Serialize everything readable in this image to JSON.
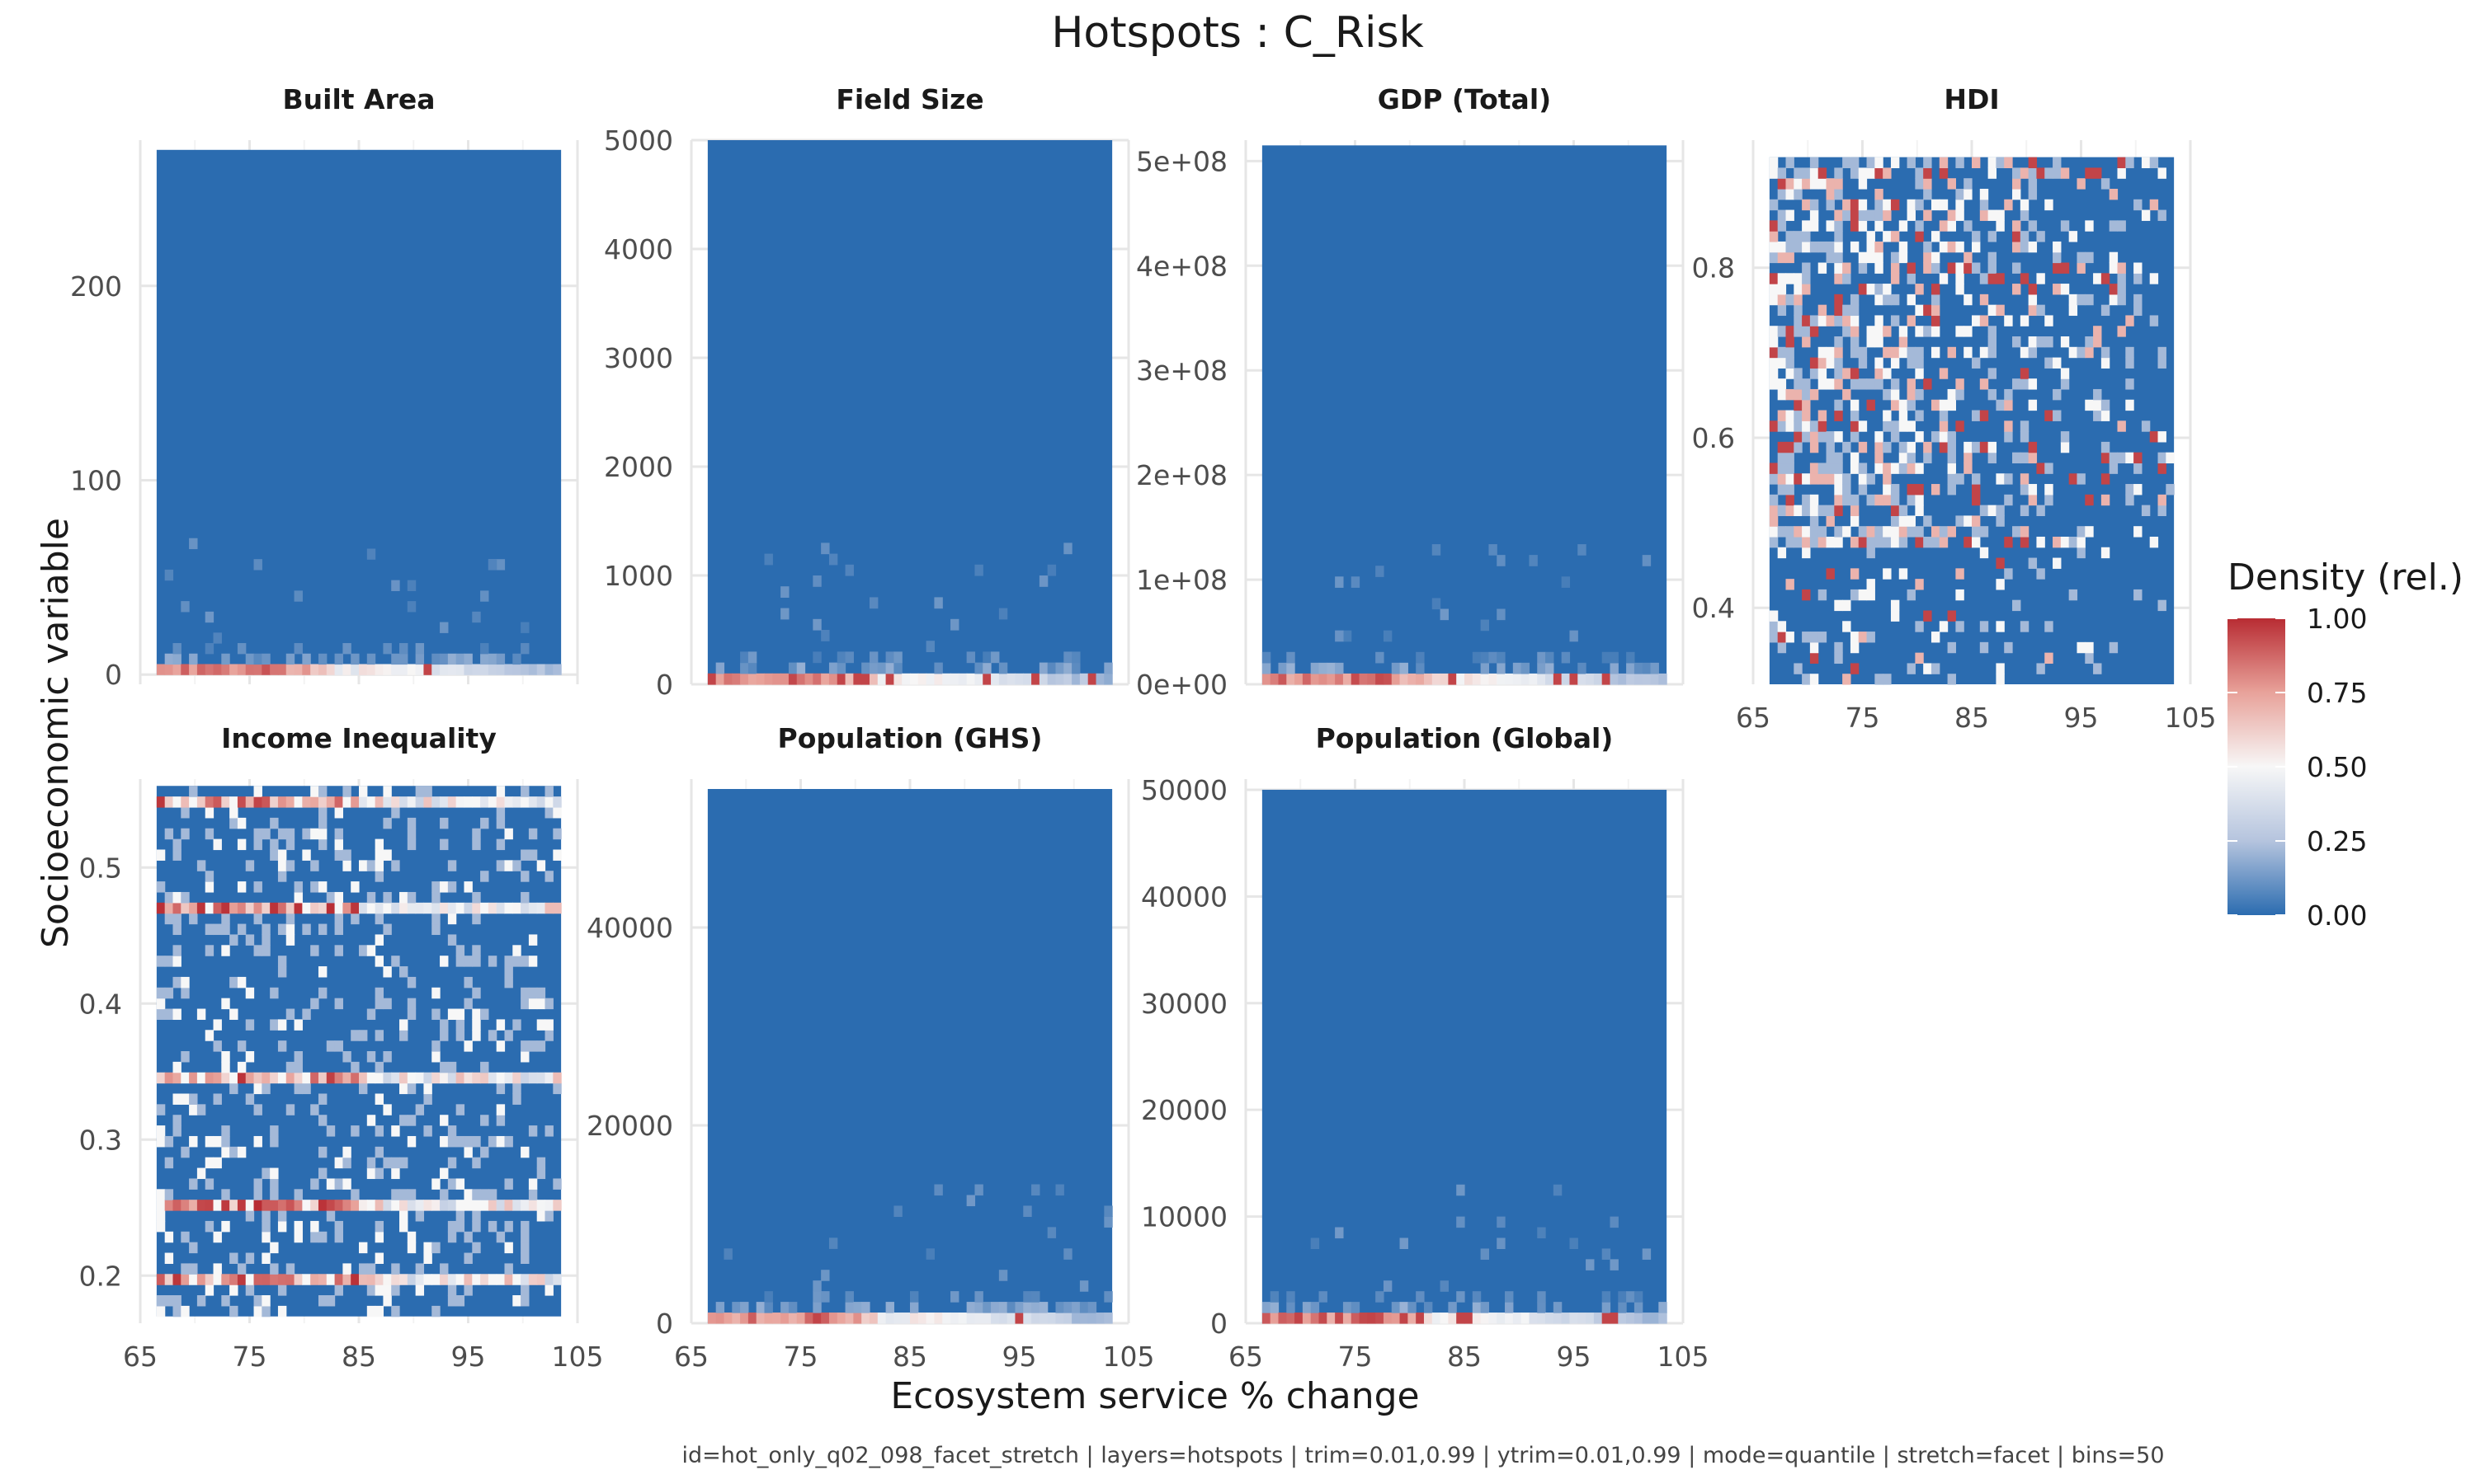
{
  "title": "Hotspots : C_Risk",
  "x_axis_title": "Ecosystem service % change",
  "y_axis_title": "Socioeconomic variable",
  "caption": "id=hot_only_q02_098_facet_stretch | layers=hotspots | trim=0.01,0.99 | ytrim=0.01,0.99 | mode=quantile | stretch=facet | bins=50",
  "legend": {
    "title": "Density (rel.)",
    "ticks": [
      "1.00",
      "0.75",
      "0.50",
      "0.25",
      "0.00"
    ],
    "colors": [
      "#2b6cb0",
      "#b5c4de",
      "#f7f7f7",
      "#e8a29a",
      "#b82c33"
    ]
  },
  "chart_data": {
    "type": "heatmap",
    "x_range": [
      65,
      105
    ],
    "x_ticks": [
      "65",
      "75",
      "85",
      "95",
      "105"
    ],
    "data_x_range": [
      66.5,
      103.5
    ],
    "bins": 50,
    "panels": [
      {
        "name": "Built Area",
        "ylim": [
          -5,
          275
        ],
        "data_y_range": [
          0,
          270
        ],
        "y_ticks": [
          0,
          100,
          200
        ],
        "y_tick_labels": [
          "0",
          "100",
          "200"
        ],
        "pattern": "bottom"
      },
      {
        "name": "Field Size",
        "ylim": [
          0,
          5000
        ],
        "data_y_range": [
          0,
          5000
        ],
        "y_ticks": [
          0,
          1000,
          2000,
          3000,
          4000,
          5000
        ],
        "y_tick_labels": [
          "0",
          "1000",
          "2000",
          "3000",
          "4000",
          "5000"
        ],
        "pattern": "bottom"
      },
      {
        "name": "GDP (Total)",
        "ylim": [
          0,
          520000000.0
        ],
        "data_y_range": [
          0,
          515000000.0
        ],
        "y_ticks": [
          0,
          100000000.0,
          200000000.0,
          300000000.0,
          400000000.0,
          500000000.0
        ],
        "y_tick_labels": [
          "0e+00",
          "1e+08",
          "2e+08",
          "3e+08",
          "4e+08",
          "5e+08"
        ],
        "pattern": "bottom"
      },
      {
        "name": "HDI",
        "ylim": [
          0.31,
          0.95
        ],
        "data_y_range": [
          0.31,
          0.93
        ],
        "y_ticks": [
          0.4,
          0.6,
          0.8
        ],
        "y_tick_labels": [
          "0.4",
          "0.6",
          "0.8"
        ],
        "pattern": "scatter"
      },
      {
        "name": "Income Inequality",
        "ylim": [
          0.165,
          0.565
        ],
        "data_y_range": [
          0.17,
          0.56
        ],
        "y_ticks": [
          0.2,
          0.3,
          0.4,
          0.5
        ],
        "y_tick_labels": [
          "0.2",
          "0.3",
          "0.4",
          "0.5"
        ],
        "pattern": "bands"
      },
      {
        "name": "Population (GHS)",
        "ylim": [
          0,
          55000
        ],
        "data_y_range": [
          0,
          54000
        ],
        "y_ticks": [
          0,
          20000,
          40000
        ],
        "y_tick_labels": [
          "0",
          "20000",
          "40000"
        ],
        "pattern": "bottom"
      },
      {
        "name": "Population (Global)",
        "ylim": [
          0,
          51000
        ],
        "data_y_range": [
          0,
          50000
        ],
        "y_ticks": [
          0,
          10000,
          20000,
          30000,
          40000,
          50000
        ],
        "y_tick_labels": [
          "0",
          "10000",
          "20000",
          "30000",
          "40000",
          "50000"
        ],
        "pattern": "bottom"
      }
    ]
  }
}
